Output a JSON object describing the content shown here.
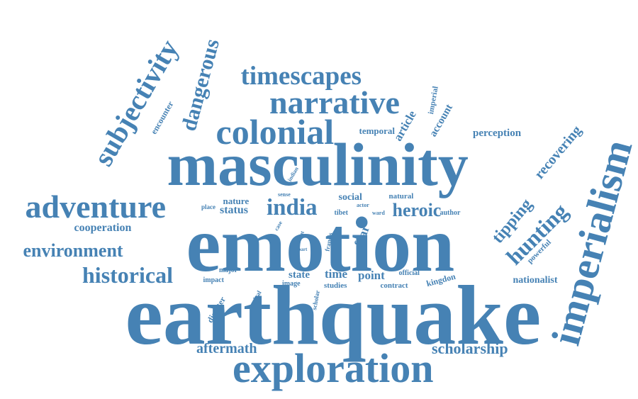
{
  "colors": {
    "word": "#4682b4",
    "background": "#ffffff"
  },
  "words": [
    {
      "text": "earthquake",
      "weight": 1.0
    },
    {
      "text": "emotion",
      "weight": 0.9
    },
    {
      "text": "masculinity",
      "weight": 0.8
    },
    {
      "text": "exploration",
      "weight": 0.55
    },
    {
      "text": "imperialism",
      "weight": 0.55
    },
    {
      "text": "colonial",
      "weight": 0.5
    },
    {
      "text": "narrative",
      "weight": 0.45
    },
    {
      "text": "subjectivity",
      "weight": 0.45
    },
    {
      "text": "adventure",
      "weight": 0.45
    },
    {
      "text": "timescapes",
      "weight": 0.38
    },
    {
      "text": "dangerous",
      "weight": 0.33
    },
    {
      "text": "hunting",
      "weight": 0.33
    },
    {
      "text": "historical",
      "weight": 0.3
    },
    {
      "text": "environment",
      "weight": 0.28
    },
    {
      "text": "india",
      "weight": 0.33
    },
    {
      "text": "heroic",
      "weight": 0.26
    },
    {
      "text": "tipping",
      "weight": 0.25
    },
    {
      "text": "recovering",
      "weight": 0.22
    },
    {
      "text": "scholarship",
      "weight": 0.22
    },
    {
      "text": "aftermath",
      "weight": 0.2
    },
    {
      "text": "cooperation",
      "weight": 0.16
    },
    {
      "text": "perception",
      "weight": 0.13
    },
    {
      "text": "article",
      "weight": 0.15
    },
    {
      "text": "account",
      "weight": 0.13
    },
    {
      "text": "imperial",
      "weight": 0.1
    },
    {
      "text": "temporal",
      "weight": 0.12
    },
    {
      "text": "encounter",
      "weight": 0.12
    },
    {
      "text": "status",
      "weight": 0.16
    },
    {
      "text": "nature",
      "weight": 0.13
    },
    {
      "text": "social",
      "weight": 0.13
    },
    {
      "text": "natural",
      "weight": 0.1
    },
    {
      "text": "fear",
      "weight": 0.16
    },
    {
      "text": "point",
      "weight": 0.16
    },
    {
      "text": "time",
      "weight": 0.16
    },
    {
      "text": "state",
      "weight": 0.14
    },
    {
      "text": "powerful",
      "weight": 0.1
    },
    {
      "text": "nationalist",
      "weight": 0.12
    },
    {
      "text": "kingdon",
      "weight": 0.11
    },
    {
      "text": "official",
      "weight": 0.1
    },
    {
      "text": "contract",
      "weight": 0.1
    },
    {
      "text": "studies",
      "weight": 0.1
    },
    {
      "text": "image",
      "weight": 0.09
    },
    {
      "text": "major",
      "weight": 0.09
    },
    {
      "text": "impact",
      "weight": 0.09
    },
    {
      "text": "disaster",
      "weight": 0.11
    },
    {
      "text": "revival",
      "weight": 0.09
    },
    {
      "text": "scholar",
      "weight": 0.09
    },
    {
      "text": "francis",
      "weight": 0.08
    },
    {
      "text": "event",
      "weight": 0.07
    },
    {
      "text": "part",
      "weight": 0.07
    },
    {
      "text": "case",
      "weight": 0.08
    },
    {
      "text": "sense",
      "weight": 0.07
    },
    {
      "text": "indian",
      "weight": 0.07
    },
    {
      "text": "place",
      "weight": 0.08
    },
    {
      "text": "tibet",
      "weight": 0.08
    },
    {
      "text": "ward",
      "weight": 0.07
    },
    {
      "text": "actor",
      "weight": 0.07
    },
    {
      "text": "author",
      "weight": 0.09
    }
  ]
}
